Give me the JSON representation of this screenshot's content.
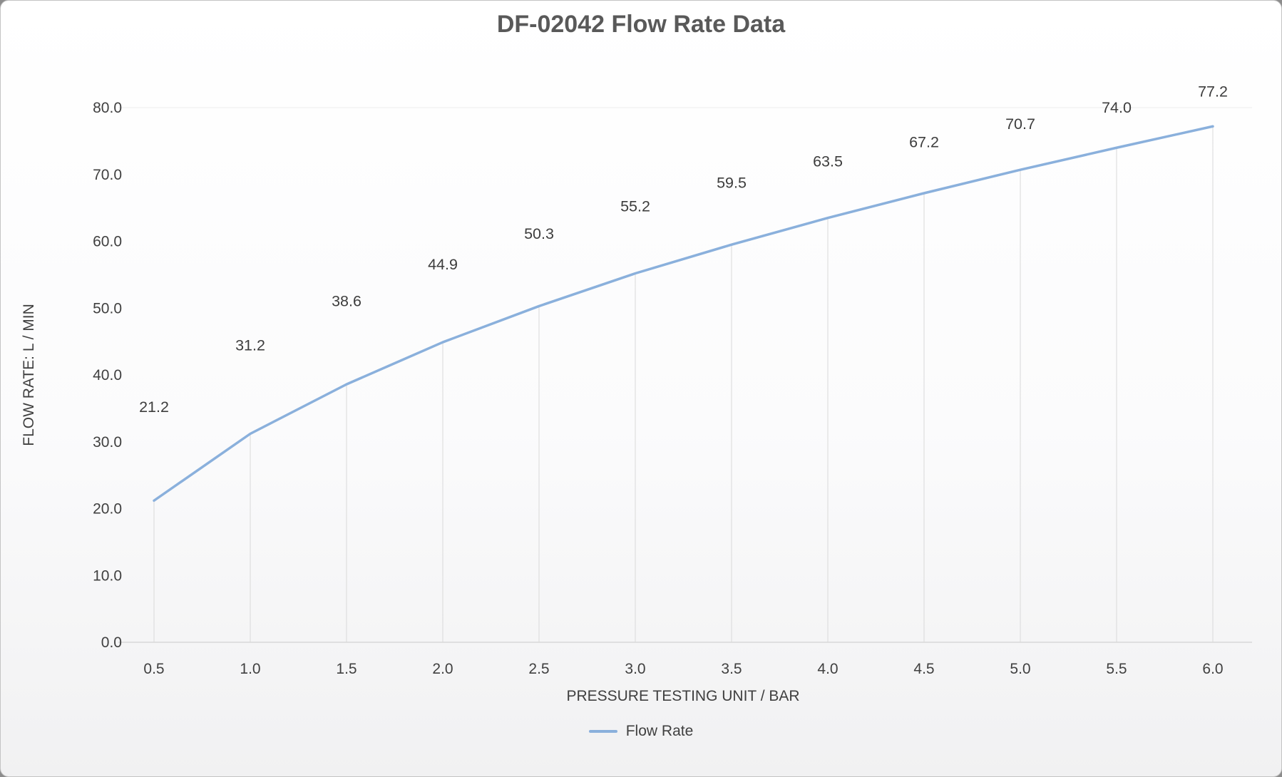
{
  "chart_data": {
    "type": "line",
    "title": "DF-02042 Flow Rate Data",
    "xlabel": "PRESSURE TESTING UNIT / BAR",
    "ylabel": "FLOW RATE: L / MIN",
    "x": [
      0.5,
      1.0,
      1.5,
      2.0,
      2.5,
      3.0,
      3.5,
      4.0,
      4.5,
      5.0,
      5.5,
      6.0
    ],
    "series": [
      {
        "name": "Flow Rate",
        "values": [
          21.2,
          31.2,
          38.6,
          44.9,
          50.3,
          55.2,
          59.5,
          63.5,
          67.2,
          70.7,
          74.0,
          77.2
        ]
      }
    ],
    "point_labels": [
      "21.2",
      "31.2",
      "38.6",
      "44.9",
      "50.3",
      "55.2",
      "59.5",
      "63.5",
      "67.2",
      "70.7",
      "74.0",
      "77.2"
    ],
    "x_tick_labels": [
      "0.5",
      "1.0",
      "1.5",
      "2.0",
      "2.5",
      "3.0",
      "3.5",
      "4.0",
      "4.5",
      "5.0",
      "5.5",
      "6.0"
    ],
    "y_tick_labels": [
      "0.0",
      "10.0",
      "20.0",
      "30.0",
      "40.0",
      "50.0",
      "60.0",
      "70.0",
      "80.0"
    ],
    "xlim": [
      0.5,
      6.0
    ],
    "ylim": [
      0,
      80
    ],
    "ytick_step": 10,
    "grid": "vertical-drop-lines-per-point",
    "legend_position": "bottom",
    "colors": {
      "line": "#8ab0dc",
      "title": "#595959",
      "tick_label": "#404040",
      "data_label": "#3d3d3d",
      "gridline": "#d9d9d9",
      "axis_line": "#c9c9c9",
      "top_gridline": "#ececec"
    }
  }
}
